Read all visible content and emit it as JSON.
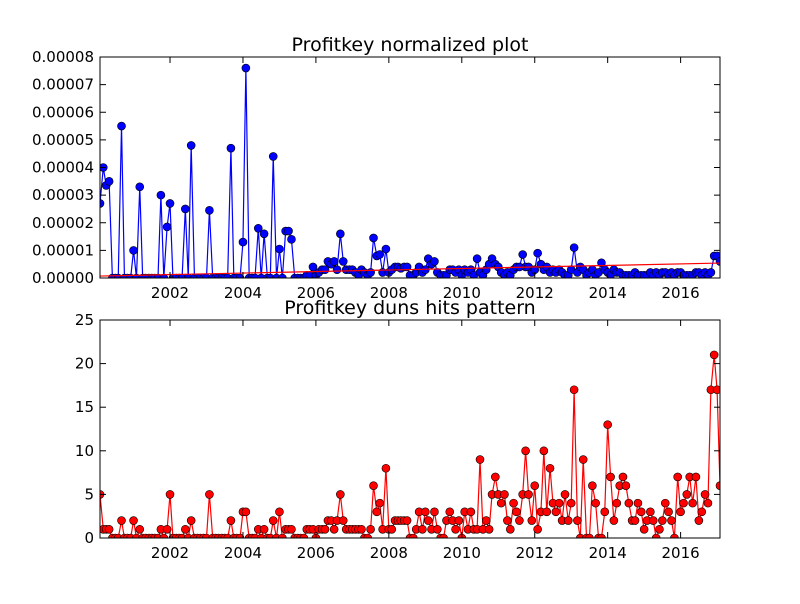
{
  "chart_data": [
    {
      "type": "line",
      "title": "Profitkey normalized plot",
      "color": "#0000ff",
      "x": [
        2000.08,
        2000.17,
        2000.25,
        2000.33,
        2000.42,
        2000.5,
        2000.58,
        2000.67,
        2000.75,
        2000.83,
        2000.92,
        2001,
        2001.08,
        2001.17,
        2001.25,
        2001.33,
        2001.42,
        2001.5,
        2001.58,
        2001.67,
        2001.75,
        2001.83,
        2001.92,
        2002,
        2002.08,
        2002.17,
        2002.25,
        2002.33,
        2002.42,
        2002.5,
        2002.58,
        2002.67,
        2002.75,
        2002.83,
        2002.92,
        2003,
        2003.08,
        2003.17,
        2003.25,
        2003.33,
        2003.42,
        2003.5,
        2003.58,
        2003.67,
        2003.75,
        2003.83,
        2003.92,
        2004,
        2004.08,
        2004.17,
        2004.25,
        2004.33,
        2004.42,
        2004.5,
        2004.58,
        2004.67,
        2004.75,
        2004.83,
        2004.92,
        2005,
        2005.08,
        2005.17,
        2005.25,
        2005.33,
        2005.42,
        2005.5,
        2005.58,
        2005.67,
        2005.75,
        2005.83,
        2005.92,
        2006,
        2006.08,
        2006.17,
        2006.25,
        2006.33,
        2006.42,
        2006.5,
        2006.58,
        2006.67,
        2006.75,
        2006.83,
        2006.92,
        2007,
        2007.08,
        2007.17,
        2007.25,
        2007.33,
        2007.42,
        2007.5,
        2007.58,
        2007.67,
        2007.75,
        2007.83,
        2007.92,
        2008,
        2008.08,
        2008.17,
        2008.25,
        2008.33,
        2008.42,
        2008.5,
        2008.58,
        2008.67,
        2008.75,
        2008.83,
        2008.92,
        2009,
        2009.08,
        2009.17,
        2009.25,
        2009.33,
        2009.42,
        2009.5,
        2009.58,
        2009.67,
        2009.75,
        2009.83,
        2009.92,
        2010,
        2010.08,
        2010.17,
        2010.25,
        2010.33,
        2010.42,
        2010.5,
        2010.58,
        2010.67,
        2010.75,
        2010.83,
        2010.92,
        2011,
        2011.08,
        2011.17,
        2011.25,
        2011.33,
        2011.42,
        2011.5,
        2011.58,
        2011.67,
        2011.75,
        2011.83,
        2011.92,
        2012,
        2012.08,
        2012.17,
        2012.25,
        2012.33,
        2012.42,
        2012.5,
        2012.58,
        2012.67,
        2012.75,
        2012.83,
        2012.92,
        2013,
        2013.08,
        2013.17,
        2013.25,
        2013.33,
        2013.42,
        2013.5,
        2013.58,
        2013.67,
        2013.75,
        2013.83,
        2013.92,
        2014,
        2014.08,
        2014.17,
        2014.25,
        2014.33,
        2014.42,
        2014.5,
        2014.58,
        2014.67,
        2014.75,
        2014.83,
        2014.92,
        2015,
        2015.08,
        2015.17,
        2015.25,
        2015.33,
        2015.42,
        2015.5,
        2015.58,
        2015.67,
        2015.75,
        2015.83,
        2015.92,
        2016,
        2016.08,
        2016.17,
        2016.25,
        2016.33,
        2016.42,
        2016.5,
        2016.58,
        2016.67,
        2016.75,
        2016.83,
        2016.92,
        2017,
        2017.08
      ],
      "values": [
        2.7e-05,
        4e-05,
        3.35e-05,
        3.5e-05,
        0,
        0,
        0,
        5.5e-05,
        0,
        0,
        0,
        1e-05,
        0,
        3.3e-05,
        0,
        0,
        0,
        0,
        0,
        0,
        3e-05,
        0,
        1.85e-05,
        2.7e-05,
        0,
        0,
        0,
        0,
        2.5e-05,
        0,
        4.8e-05,
        0,
        0,
        0,
        0,
        0,
        2.45e-05,
        0,
        0,
        0,
        0,
        0,
        0,
        4.7e-05,
        0,
        0,
        0,
        1.3e-05,
        7.6e-05,
        0,
        0,
        0,
        1.8e-05,
        0,
        1.6e-05,
        0,
        0,
        4.4e-05,
        0,
        1.05e-05,
        0,
        1.7e-05,
        1.7e-05,
        1.4e-05,
        0,
        0,
        0,
        0,
        1e-06,
        1e-06,
        4e-06,
        1e-06,
        2e-06,
        3e-06,
        3e-06,
        6e-06,
        5e-06,
        6e-06,
        3e-06,
        1.6e-05,
        6e-06,
        3e-06,
        3e-06,
        3e-06,
        2e-06,
        1e-06,
        3e-06,
        2e-06,
        1e-06,
        2e-06,
        1.45e-05,
        8e-06,
        8.5e-06,
        2e-06,
        1.05e-05,
        2e-06,
        3e-06,
        4e-06,
        4e-06,
        3.5e-06,
        4e-06,
        4e-06,
        1e-06,
        1e-06,
        2e-06,
        4e-06,
        2e-06,
        3e-06,
        7e-06,
        5e-06,
        6e-06,
        2e-06,
        1e-06,
        1e-06,
        1e-06,
        3e-06,
        3e-06,
        2e-06,
        3e-06,
        1e-06,
        3e-06,
        2e-06,
        3e-06,
        1e-06,
        7e-06,
        2e-06,
        1e-06,
        3e-06,
        5e-06,
        7e-06,
        5e-06,
        4e-06,
        2e-06,
        1e-06,
        2e-06,
        1e-06,
        3e-06,
        4e-06,
        4e-06,
        8.5e-06,
        4e-06,
        4e-06,
        2e-06,
        3e-06,
        9e-06,
        5e-06,
        3e-06,
        4e-06,
        2e-06,
        3e-06,
        2e-06,
        3e-06,
        2e-06,
        1e-06,
        1e-06,
        3e-06,
        1.1e-05,
        2e-06,
        4e-06,
        3e-06,
        1e-06,
        2e-06,
        3e-06,
        1e-06,
        2e-06,
        5.5e-06,
        3e-06,
        2e-06,
        1e-06,
        3e-06,
        2e-06,
        2e-06,
        1e-06,
        1e-06,
        1e-06,
        1e-06,
        2e-06,
        1e-06,
        1e-06,
        1e-06,
        1e-06,
        2e-06,
        1e-06,
        2e-06,
        1e-06,
        2e-06,
        2e-06,
        1e-06,
        2e-06,
        1e-06,
        2e-06,
        2e-06,
        1e-06,
        1e-06,
        1e-06,
        1e-06,
        2e-06,
        2e-06,
        1e-06,
        2e-06,
        1e-06,
        2e-06,
        8e-06,
        8e-06,
        6e-06
      ],
      "trend": {
        "color": "#ff0000",
        "x": [
          2000.08,
          2017.08
        ],
        "values": [
          7e-07,
          5.4e-06
        ]
      },
      "xlim": [
        2000.08,
        2017.08
      ],
      "xticks": [
        2002,
        2004,
        2006,
        2008,
        2010,
        2012,
        2014,
        2016
      ],
      "ylim": [
        0,
        8e-05
      ],
      "yticks": [
        {
          "value": 0,
          "label": "0.00000"
        },
        1e-05,
        2e-05,
        3e-05,
        4e-05,
        5e-05,
        6e-05,
        7e-05,
        8e-05
      ]
    },
    {
      "type": "line",
      "title": "Profitkey duns hits pattern",
      "color": "#ff0000",
      "x": [
        2000.08,
        2000.17,
        2000.25,
        2000.33,
        2000.42,
        2000.5,
        2000.58,
        2000.67,
        2000.75,
        2000.83,
        2000.92,
        2001,
        2001.08,
        2001.17,
        2001.25,
        2001.33,
        2001.42,
        2001.5,
        2001.58,
        2001.67,
        2001.75,
        2001.83,
        2001.92,
        2002,
        2002.08,
        2002.17,
        2002.25,
        2002.33,
        2002.42,
        2002.5,
        2002.58,
        2002.67,
        2002.75,
        2002.83,
        2002.92,
        2003,
        2003.08,
        2003.17,
        2003.25,
        2003.33,
        2003.42,
        2003.5,
        2003.58,
        2003.67,
        2003.75,
        2003.83,
        2003.92,
        2004,
        2004.08,
        2004.17,
        2004.25,
        2004.33,
        2004.42,
        2004.5,
        2004.58,
        2004.67,
        2004.75,
        2004.83,
        2004.92,
        2005,
        2005.08,
        2005.17,
        2005.25,
        2005.33,
        2005.42,
        2005.5,
        2005.58,
        2005.67,
        2005.75,
        2005.83,
        2005.92,
        2006,
        2006.08,
        2006.17,
        2006.25,
        2006.33,
        2006.42,
        2006.5,
        2006.58,
        2006.67,
        2006.75,
        2006.83,
        2006.92,
        2007,
        2007.08,
        2007.17,
        2007.25,
        2007.33,
        2007.42,
        2007.5,
        2007.58,
        2007.67,
        2007.75,
        2007.83,
        2007.92,
        2008,
        2008.08,
        2008.17,
        2008.25,
        2008.33,
        2008.42,
        2008.5,
        2008.58,
        2008.67,
        2008.75,
        2008.83,
        2008.92,
        2009,
        2009.08,
        2009.17,
        2009.25,
        2009.33,
        2009.42,
        2009.5,
        2009.58,
        2009.67,
        2009.75,
        2009.83,
        2009.92,
        2010,
        2010.08,
        2010.17,
        2010.25,
        2010.33,
        2010.42,
        2010.5,
        2010.58,
        2010.67,
        2010.75,
        2010.83,
        2010.92,
        2011,
        2011.08,
        2011.17,
        2011.25,
        2011.33,
        2011.42,
        2011.5,
        2011.58,
        2011.67,
        2011.75,
        2011.83,
        2011.92,
        2012,
        2012.08,
        2012.17,
        2012.25,
        2012.33,
        2012.42,
        2012.5,
        2012.58,
        2012.67,
        2012.75,
        2012.83,
        2012.92,
        2013,
        2013.08,
        2013.17,
        2013.25,
        2013.33,
        2013.42,
        2013.5,
        2013.58,
        2013.67,
        2013.75,
        2013.83,
        2013.92,
        2014,
        2014.08,
        2014.17,
        2014.25,
        2014.33,
        2014.42,
        2014.5,
        2014.58,
        2014.67,
        2014.75,
        2014.83,
        2014.92,
        2015,
        2015.08,
        2015.17,
        2015.25,
        2015.33,
        2015.42,
        2015.5,
        2015.58,
        2015.67,
        2015.75,
        2015.83,
        2015.92,
        2016,
        2016.08,
        2016.17,
        2016.25,
        2016.33,
        2016.42,
        2016.5,
        2016.58,
        2016.67,
        2016.75,
        2016.83,
        2016.92,
        2017,
        2017.08
      ],
      "values": [
        5,
        1,
        1,
        1,
        0,
        0,
        0,
        2,
        0,
        0,
        0,
        2,
        0,
        1,
        0,
        0,
        0,
        0,
        0,
        0,
        1,
        0,
        1,
        5,
        0,
        0,
        0,
        0,
        1,
        0,
        2,
        0,
        0,
        0,
        0,
        0,
        5,
        0,
        0,
        0,
        0,
        0,
        0,
        2,
        0,
        0,
        0,
        3,
        3,
        0,
        0,
        0,
        1,
        0,
        1,
        0,
        0,
        2,
        0,
        3,
        0,
        1,
        1,
        1,
        0,
        0,
        0,
        0,
        1,
        1,
        1,
        0,
        1,
        1,
        1,
        2,
        2,
        1,
        2,
        5,
        2,
        1,
        1,
        1,
        1,
        1,
        1,
        0,
        0,
        1,
        6,
        3,
        4,
        1,
        8,
        1,
        1,
        2,
        2,
        2,
        2,
        2,
        0,
        0,
        1,
        3,
        1,
        3,
        2,
        1,
        3,
        1,
        0,
        0,
        2,
        3,
        2,
        1,
        2,
        0,
        3,
        1,
        3,
        1,
        1,
        9,
        1,
        2,
        1,
        5,
        7,
        5,
        4,
        5,
        2,
        1,
        4,
        3,
        2,
        5,
        10,
        5,
        2,
        6,
        1,
        3,
        10,
        3,
        8,
        4,
        3,
        4,
        2,
        5,
        2,
        4,
        17,
        2,
        0,
        9,
        0,
        0,
        6,
        4,
        0,
        0,
        3,
        13,
        7,
        2,
        4,
        6,
        7,
        6,
        4,
        2,
        2,
        4,
        3,
        1,
        2,
        3,
        2,
        0,
        1,
        2,
        4,
        3,
        2,
        0,
        7,
        3,
        4,
        5,
        7,
        4,
        7,
        2,
        3,
        5,
        4,
        17,
        21,
        17,
        6
      ],
      "xlim": [
        2000.08,
        2017.08
      ],
      "xticks": [
        2002,
        2004,
        2006,
        2008,
        2010,
        2012,
        2014,
        2016
      ],
      "ylim": [
        0,
        25
      ],
      "yticks": [
        0,
        5,
        10,
        15,
        20,
        25
      ]
    }
  ]
}
